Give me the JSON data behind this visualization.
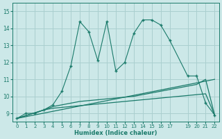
{
  "xlabel": "Humidex (Indice chaleur)",
  "bg_color": "#cce8e8",
  "grid_color": "#aacfcf",
  "line_color": "#1a7a6a",
  "xlim": [
    -0.5,
    22.5
  ],
  "ylim": [
    8.5,
    15.5
  ],
  "xticks": [
    0,
    1,
    2,
    3,
    4,
    5,
    6,
    7,
    8,
    9,
    10,
    11,
    12,
    13,
    14,
    15,
    16,
    17,
    19,
    20,
    21,
    22
  ],
  "yticks": [
    9,
    10,
    11,
    12,
    13,
    14,
    15
  ],
  "line1_x": [
    0,
    1,
    2,
    3,
    4,
    5,
    6,
    7,
    8,
    9,
    10,
    11,
    12,
    13,
    14,
    15,
    16,
    17,
    19,
    20,
    21,
    22
  ],
  "line1_y": [
    8.7,
    9.0,
    9.0,
    9.2,
    9.5,
    10.3,
    11.8,
    14.4,
    13.8,
    12.1,
    14.4,
    11.5,
    12.0,
    13.7,
    14.5,
    14.5,
    14.2,
    13.3,
    11.2,
    11.2,
    9.6,
    8.9
  ],
  "line2_x": [
    0,
    3,
    4,
    5,
    6,
    7,
    8,
    9,
    10,
    11,
    12,
    13,
    14,
    15,
    16,
    17,
    19,
    20,
    21,
    22
  ],
  "line2_y": [
    8.7,
    9.2,
    9.4,
    9.5,
    9.6,
    9.7,
    9.75,
    9.8,
    9.85,
    9.9,
    9.95,
    10.0,
    10.1,
    10.2,
    10.3,
    10.4,
    10.6,
    10.7,
    11.0,
    8.9
  ],
  "line3_x": [
    0,
    3,
    4,
    5,
    6,
    7,
    8,
    9,
    10,
    11,
    12,
    13,
    14,
    15,
    16,
    17,
    19,
    20,
    21,
    22
  ],
  "line3_y": [
    8.7,
    9.2,
    9.3,
    9.35,
    9.4,
    9.45,
    9.5,
    9.55,
    9.6,
    9.65,
    9.7,
    9.75,
    9.8,
    9.85,
    9.9,
    9.95,
    10.05,
    10.1,
    10.15,
    8.9
  ],
  "line4_x": [
    0,
    22
  ],
  "line4_y": [
    8.7,
    11.0
  ]
}
